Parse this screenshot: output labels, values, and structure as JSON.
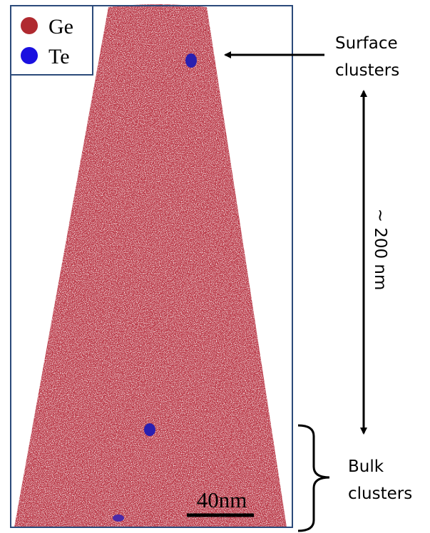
{
  "legend": {
    "items": [
      {
        "label": "Ge"
      },
      {
        "label": "Te"
      }
    ]
  },
  "annotations": {
    "surface": [
      "Surface",
      "clusters"
    ],
    "length": "~ 200 nm",
    "bulk": [
      "Bulk",
      "clusters"
    ]
  },
  "scale_bar": {
    "label": "40nm"
  }
}
